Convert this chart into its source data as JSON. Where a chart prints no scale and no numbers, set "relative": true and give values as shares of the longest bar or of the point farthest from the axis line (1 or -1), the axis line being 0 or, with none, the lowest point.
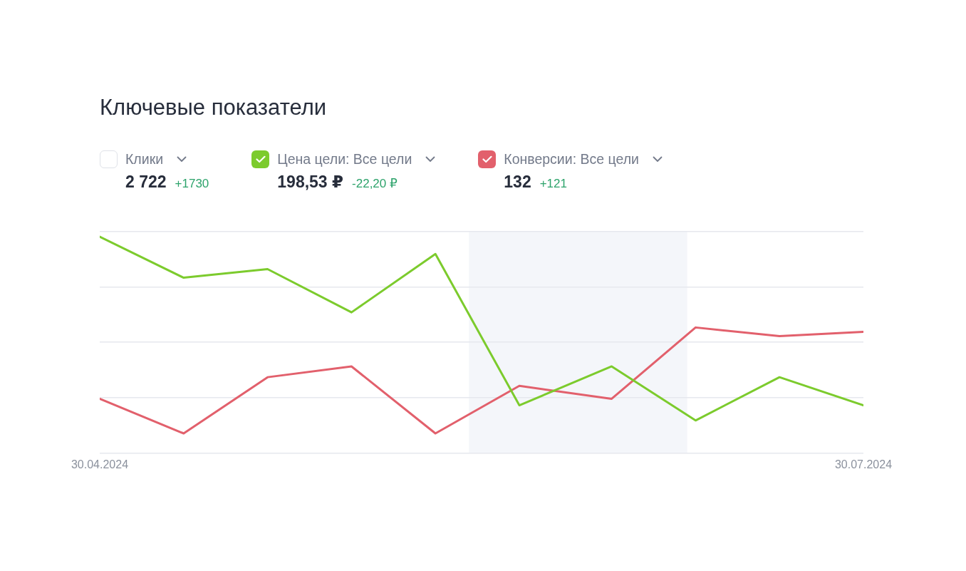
{
  "chart_data": {
    "type": "line",
    "title": "Ключевые показатели",
    "x": [
      "2024-04-30",
      "2024-05-10",
      "2024-05-20",
      "2024-05-30",
      "2024-06-09",
      "2024-06-19",
      "2024-06-30",
      "2024-07-10",
      "2024-07-20",
      "2024-07-30"
    ],
    "series": [
      {
        "name": "Цена цели: Все цели",
        "color": "#7ccb2d",
        "values": [
          1.0,
          0.81,
          0.85,
          0.65,
          0.92,
          0.22,
          0.4,
          0.15,
          0.35,
          0.22
        ]
      },
      {
        "name": "Конверсии: Все цели",
        "color": "#e2606c",
        "values": [
          0.25,
          0.09,
          0.35,
          0.4,
          0.09,
          0.31,
          0.25,
          0.58,
          0.54,
          0.56
        ]
      }
    ],
    "relative": true,
    "xlim": [
      "2024-04-30",
      "2024-07-30"
    ],
    "xticks": [
      {
        "value": "2024-04-30",
        "label": "30.04.2024"
      },
      {
        "value": "2024-07-30",
        "label": "30.07.2024"
      }
    ],
    "bands": [
      {
        "axis": "x",
        "from": "2024-06-13",
        "to": "2024-07-09",
        "color": "#f4f6fa"
      }
    ],
    "grid": "y",
    "legend": "top left",
    "annotations": [
      "Клики",
      "2 722",
      "+1730",
      "198,53 ₽",
      "-22,20 ₽",
      "132",
      "+121"
    ]
  }
}
